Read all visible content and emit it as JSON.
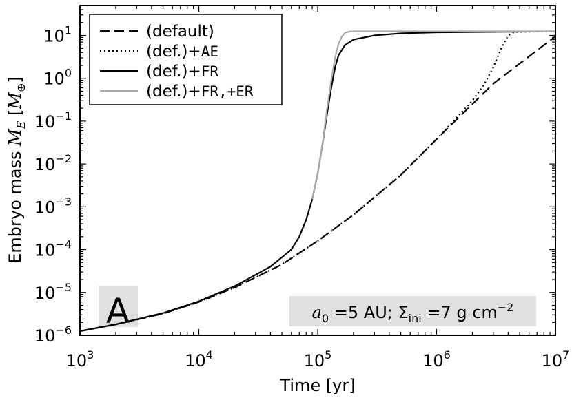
{
  "chart_data": {
    "type": "line",
    "panel_label": "A",
    "xlabel": "Time [yr]",
    "xscale": "log",
    "xlim": [
      1000,
      10000000
    ],
    "x_ticks": [
      {
        "base": "10",
        "exp": "3"
      },
      {
        "base": "10",
        "exp": "4"
      },
      {
        "base": "10",
        "exp": "5"
      },
      {
        "base": "10",
        "exp": "6"
      },
      {
        "base": "10",
        "exp": "7"
      }
    ],
    "ylabel": {
      "prefix": "Embryo mass ",
      "sym": "M",
      "sub": "E",
      "open": " [",
      "unit_sym": "M",
      "unit_sub": "⊕",
      "close": "]"
    },
    "yscale": "log",
    "ylim": [
      1e-06,
      50
    ],
    "y_ticks": [
      {
        "base": "10",
        "exp": "1"
      },
      {
        "base": "10",
        "exp": "0"
      },
      {
        "base": "10",
        "exp": "−1"
      },
      {
        "base": "10",
        "exp": "−2"
      },
      {
        "base": "10",
        "exp": "−3"
      },
      {
        "base": "10",
        "exp": "−4"
      },
      {
        "base": "10",
        "exp": "−5"
      },
      {
        "base": "10",
        "exp": "−6"
      }
    ],
    "legend_position": "top-left",
    "annotation": {
      "a_sym": "a",
      "a_sub": "0",
      "a_text": " =5 AU; ",
      "sig_sym": "Σ",
      "sig_sub": "ini",
      "sig_text": " =7 g cm",
      "sig_exp": "−2"
    },
    "series": [
      {
        "name": {
          "pre": "(default)",
          "code": ""
        },
        "color": "#000000",
        "dash": "dashed",
        "points": [
          [
            1000,
            1.25e-06
          ],
          [
            2000,
            1.8e-06
          ],
          [
            5000,
            3.2e-06
          ],
          [
            10000,
            6e-06
          ],
          [
            20000,
            1.3e-05
          ],
          [
            50000,
            4.5e-05
          ],
          [
            100000,
            0.00016
          ],
          [
            200000,
            0.00065
          ],
          [
            500000,
            0.0055
          ],
          [
            1000000,
            0.038
          ],
          [
            2000000,
            0.25
          ],
          [
            3000000,
            0.75
          ],
          [
            5000000,
            2.2
          ],
          [
            7000000,
            4.5
          ],
          [
            10000000,
            9.5
          ]
        ]
      },
      {
        "name": {
          "pre": "(def.)+",
          "code": "AE"
        },
        "color": "#000000",
        "dash": "dotted",
        "points": [
          [
            1000,
            1.25e-06
          ],
          [
            2000,
            1.8e-06
          ],
          [
            5000,
            3.2e-06
          ],
          [
            10000,
            6e-06
          ],
          [
            20000,
            1.3e-05
          ],
          [
            50000,
            4.5e-05
          ],
          [
            100000,
            0.00016
          ],
          [
            200000,
            0.00065
          ],
          [
            500000,
            0.0055
          ],
          [
            1000000,
            0.038
          ],
          [
            2000000,
            0.3
          ],
          [
            2500000,
            0.7
          ],
          [
            3000000,
            1.8
          ],
          [
            3500000,
            5
          ],
          [
            4000000,
            10
          ],
          [
            4500000,
            12
          ],
          [
            10000000,
            12.5
          ]
        ]
      },
      {
        "name": {
          "pre": "(def.)+",
          "code": "FR"
        },
        "color": "#000000",
        "dash": "solid",
        "points": [
          [
            1000,
            1.25e-06
          ],
          [
            2000,
            1.8e-06
          ],
          [
            5000,
            3.3e-06
          ],
          [
            10000,
            6.2e-06
          ],
          [
            20000,
            1.4e-05
          ],
          [
            40000,
            4e-05
          ],
          [
            60000,
            0.0001
          ],
          [
            70000,
            0.0002
          ],
          [
            80000,
            0.0005
          ],
          [
            90000,
            0.0015
          ],
          [
            100000,
            0.006
          ],
          [
            110000,
            0.03
          ],
          [
            120000,
            0.15
          ],
          [
            130000,
            0.6
          ],
          [
            140000,
            1.8
          ],
          [
            150000,
            3.5
          ],
          [
            170000,
            6
          ],
          [
            200000,
            8
          ],
          [
            300000,
            10
          ],
          [
            500000,
            11.2
          ],
          [
            1000000,
            11.8
          ],
          [
            10000000,
            12.5
          ]
        ]
      },
      {
        "name": {
          "pre": "(def.)+",
          "code": "FR,+ER"
        },
        "color": "#aaaaaa",
        "dash": "solid",
        "points": [
          [
            90000,
            0.0015
          ],
          [
            100000,
            0.006
          ],
          [
            110000,
            0.03
          ],
          [
            120000,
            0.2
          ],
          [
            130000,
            0.9
          ],
          [
            140000,
            3
          ],
          [
            150000,
            6.5
          ],
          [
            160000,
            9.5
          ],
          [
            170000,
            11.5
          ],
          [
            185000,
            12.3
          ],
          [
            200000,
            12.5
          ],
          [
            10000000,
            12.5
          ]
        ]
      }
    ]
  }
}
